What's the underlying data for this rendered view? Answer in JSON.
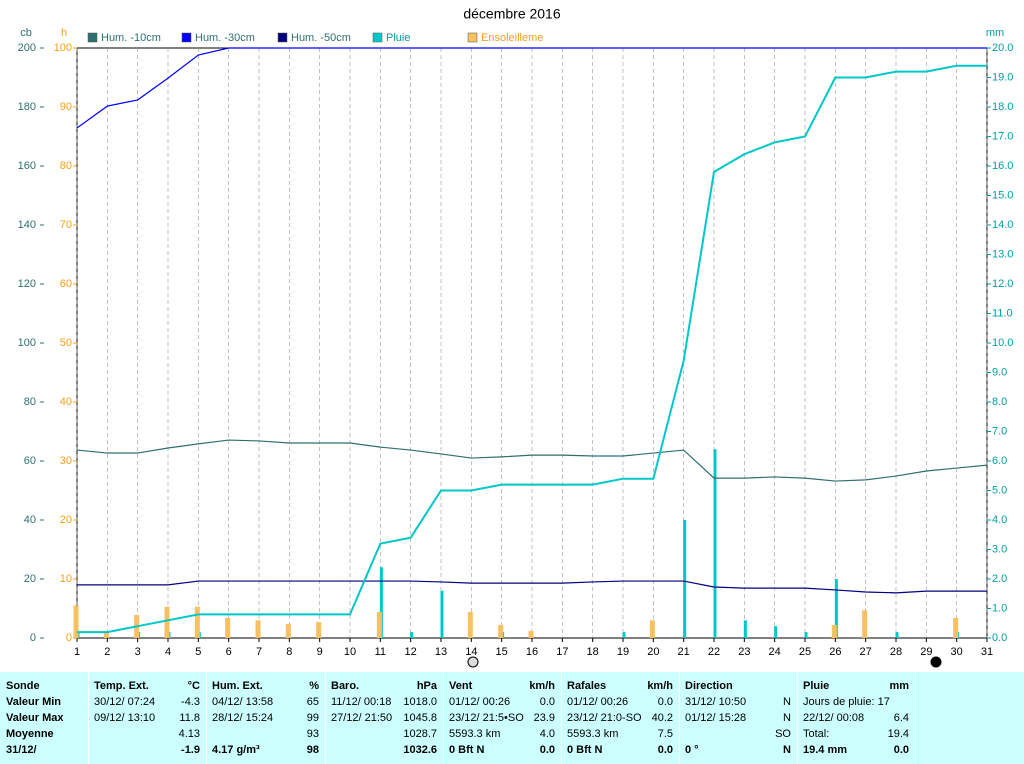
{
  "chart_data": {
    "type": "line",
    "title": "décembre 2016",
    "ylabel": "cb",
    "y2label": "h",
    "y3label": "mm",
    "x": [
      1,
      2,
      3,
      4,
      5,
      6,
      7,
      8,
      9,
      10,
      11,
      12,
      13,
      14,
      15,
      16,
      17,
      18,
      19,
      20,
      21,
      22,
      23,
      24,
      25,
      26,
      27,
      28,
      29,
      30,
      31
    ],
    "xlim": [
      1,
      31
    ],
    "xticks": [
      1,
      2,
      3,
      4,
      5,
      6,
      7,
      8,
      9,
      10,
      11,
      12,
      13,
      14,
      15,
      16,
      17,
      18,
      19,
      20,
      21,
      22,
      23,
      24,
      25,
      26,
      27,
      28,
      29,
      30,
      31
    ],
    "ylim": [
      0,
      200
    ],
    "yticks": [
      0,
      20,
      40,
      60,
      80,
      100,
      120,
      140,
      160,
      180,
      200
    ],
    "ytick_color": "#2f6f6f",
    "y2lim": [
      0,
      100
    ],
    "y2ticks": [
      0,
      10,
      20,
      30,
      40,
      50,
      60,
      70,
      80,
      90,
      100
    ],
    "y2tick_color": "#f0a020",
    "y3lim": [
      0,
      20
    ],
    "y3ticks": [
      {
        "value": 0,
        "label": "0.0"
      },
      {
        "value": 1,
        "label": "1.0"
      },
      {
        "value": 2,
        "label": "2.0"
      },
      {
        "value": 3,
        "label": "3.0"
      },
      {
        "value": 4,
        "label": "4.0"
      },
      {
        "value": 5,
        "label": "5.0"
      },
      {
        "value": 6,
        "label": "6.0"
      },
      {
        "value": 7,
        "label": "7.0"
      },
      {
        "value": 8,
        "label": "8.0"
      },
      {
        "value": 9,
        "label": "9.0"
      },
      {
        "value": 10,
        "label": "10.0"
      },
      {
        "value": 11,
        "label": "11.0"
      },
      {
        "value": 12,
        "label": "12.0"
      },
      {
        "value": 13,
        "label": "13.0"
      },
      {
        "value": 14,
        "label": "14.0"
      },
      {
        "value": 15,
        "label": "15.0"
      },
      {
        "value": 16,
        "label": "16.0"
      },
      {
        "value": 17,
        "label": "17.0"
      },
      {
        "value": 18,
        "label": "18.0"
      },
      {
        "value": 19,
        "label": "19.0"
      },
      {
        "value": 20,
        "label": "20.0"
      }
    ],
    "y3tick_color": "#00a0a0",
    "grid": true,
    "series": [
      {
        "name": "Hum. -10cm",
        "color": "#2f6f6f",
        "label_color": "#2f6f6f",
        "axis": "y",
        "marks": [
          "line"
        ],
        "values": [
          63.7,
          62.7,
          62.7,
          64.4,
          65.8,
          67.1,
          66.8,
          66.1,
          66.1,
          66.1,
          64.7,
          63.7,
          62.4,
          61.0,
          61.4,
          62.0,
          62.0,
          61.7,
          61.7,
          62.7,
          63.7,
          54.2,
          54.2,
          54.6,
          54.2,
          53.2,
          53.6,
          54.9,
          56.6,
          57.6,
          58.6
        ]
      },
      {
        "name": "Hum. -30cm",
        "color": "#0000ff",
        "label_color": "#2f6f6f",
        "axis": "y",
        "marks": [
          "line"
        ],
        "values": [
          172.9,
          180.3,
          182.4,
          189.8,
          197.6,
          200,
          200,
          200,
          200,
          200,
          200,
          200,
          200,
          200,
          200,
          200,
          200,
          200,
          200,
          200,
          200,
          200,
          200,
          200,
          200,
          200,
          200,
          200,
          200,
          200,
          200
        ]
      },
      {
        "name": "Hum. -50cm",
        "color": "#000080",
        "label_color": "#2f6f6f",
        "axis": "y",
        "marks": [
          "line"
        ],
        "values": [
          18.0,
          18.0,
          18.0,
          18.0,
          19.3,
          19.3,
          19.3,
          19.3,
          19.3,
          19.3,
          19.3,
          19.3,
          19.0,
          18.6,
          18.6,
          18.6,
          18.6,
          19.0,
          19.3,
          19.3,
          19.3,
          17.3,
          16.9,
          16.9,
          16.9,
          16.3,
          15.6,
          15.3,
          15.9,
          15.9,
          15.9
        ]
      },
      {
        "name": "Pluie",
        "color": "#00c8c8",
        "label_color": "#00a0a0",
        "axis": "y3",
        "marks": [
          "bar",
          "cumulative-line"
        ],
        "values": [
          0.2,
          0,
          0.2,
          0.2,
          0.2,
          0,
          0,
          0,
          0,
          0,
          2.4,
          0.2,
          1.6,
          0,
          0.2,
          0,
          0,
          0,
          0.2,
          0,
          4.0,
          6.4,
          0.6,
          0.4,
          0.2,
          2.0,
          0,
          0.2,
          0,
          0.2,
          0
        ]
      },
      {
        "name": "Ensoleilleme",
        "color": "#f8c060",
        "label_color": "#f0a020",
        "axis": "y2",
        "marks": [
          "bar"
        ],
        "values": [
          5.5,
          1,
          3.9,
          5.3,
          5.3,
          3.4,
          3,
          2.4,
          2.7,
          0,
          4.4,
          0,
          0,
          4.4,
          2.2,
          1.2,
          0,
          0,
          0,
          3,
          0,
          0,
          0,
          0,
          0,
          2.2,
          4.7,
          0,
          0,
          3.4,
          0
        ]
      }
    ]
  },
  "table": {
    "columns": [
      {
        "head": {
          "left": "Sonde"
        },
        "rows": [
          {
            "left": "Valeur Min"
          },
          {
            "left": "Valeur Max"
          },
          {
            "left": "Moyenne"
          },
          {
            "left": "31/12/"
          }
        ]
      },
      {
        "head": {
          "left": "Temp. Ext.",
          "right": "°C"
        },
        "rows": [
          {
            "left": "30/12/ 07:24",
            "right": "-4.3"
          },
          {
            "left": "09/12/ 13:10",
            "right": "11.8"
          },
          {
            "right": "4.13"
          },
          {
            "right": "-1.9"
          }
        ]
      },
      {
        "head": {
          "left": "Hum. Ext.",
          "right": "%"
        },
        "rows": [
          {
            "left": "04/12/ 13:58",
            "right": "65"
          },
          {
            "left": "28/12/ 15:24",
            "right": "99"
          },
          {
            "right": "93"
          },
          {
            "left": "4.17 g/m³",
            "right": "98"
          }
        ]
      },
      {
        "head": {
          "left": "Baro.",
          "right": "hPa"
        },
        "rows": [
          {
            "left": "11/12/ 00:18",
            "right": "1018.0"
          },
          {
            "left": "27/12/ 21:50",
            "right": "1045.8"
          },
          {
            "right": "1028.7"
          },
          {
            "right": "1032.6"
          }
        ]
      },
      {
        "head": {
          "left": "Vent",
          "right": "km/h"
        },
        "rows": [
          {
            "left": "01/12/ 00:26",
            "right": "0.0"
          },
          {
            "left": "23/12/ 21:5•SO",
            "right": "23.9"
          },
          {
            "left": "5593.3 km",
            "right": "4.0"
          },
          {
            "left": "0 Bft N",
            "right": "0.0"
          }
        ]
      },
      {
        "head": {
          "left": "Rafales",
          "right": "km/h"
        },
        "rows": [
          {
            "left": "01/12/ 00:26",
            "right": "0.0"
          },
          {
            "left": "23/12/ 21:0-SO",
            "right": "40.2"
          },
          {
            "left": "5593.3 km",
            "right": "7.5"
          },
          {
            "left": "0 Bft N",
            "right": "0.0"
          }
        ]
      },
      {
        "head": {
          "left": "Direction"
        },
        "rows": [
          {
            "left": "31/12/ 10:50",
            "right": "N"
          },
          {
            "left": "01/12/ 15:28",
            "right": "N"
          },
          {
            "right": "SO"
          },
          {
            "left": "0 °",
            "right": "N"
          }
        ]
      },
      {
        "head": {
          "left": "Pluie",
          "right": "mm"
        },
        "rows": [
          {
            "left": "Jours de pluie: 17"
          },
          {
            "left": "22/12/ 00:08",
            "right": "6.4"
          },
          {
            "left": "Total:",
            "right": "19.4"
          },
          {
            "left": "19.4 mm",
            "right": "0.0"
          }
        ]
      }
    ]
  }
}
